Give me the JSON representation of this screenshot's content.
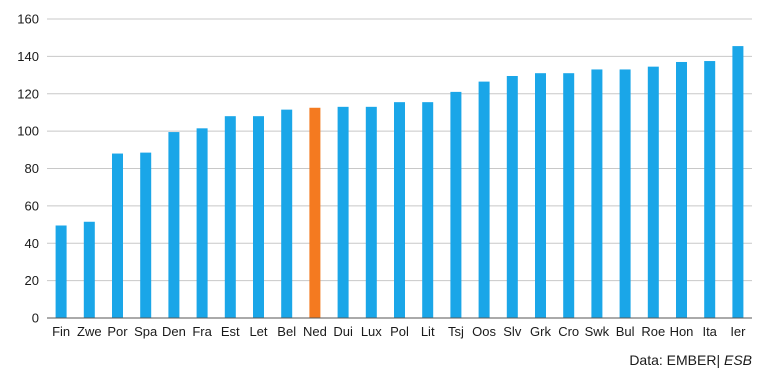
{
  "chart_data": {
    "type": "bar",
    "categories": [
      "Fin",
      "Zwe",
      "Por",
      "Spa",
      "Den",
      "Fra",
      "Est",
      "Let",
      "Bel",
      "Ned",
      "Dui",
      "Lux",
      "Pol",
      "Lit",
      "Tsj",
      "Oos",
      "Slv",
      "Grk",
      "Cro",
      "Swk",
      "Bul",
      "Roe",
      "Hon",
      "Ita",
      "Ier"
    ],
    "values": [
      49.5,
      51.5,
      88,
      88.5,
      99.5,
      101.5,
      108,
      108,
      111.5,
      112.5,
      113,
      113,
      115.5,
      115.5,
      121,
      126.5,
      129.5,
      131,
      131,
      133,
      133,
      134.5,
      137,
      137.5,
      145.5
    ],
    "highlight_category": "Ned",
    "ylim": [
      0,
      160
    ],
    "yticks": [
      0,
      20,
      40,
      60,
      80,
      100,
      120,
      140,
      160
    ],
    "ytick_labels": [
      "0",
      "20",
      "40",
      "60",
      "80",
      "100",
      "120",
      "140",
      "160"
    ],
    "grid": "horizontal",
    "title": "",
    "xlabel": "",
    "ylabel": "",
    "colors": {
      "bar": "#1aa6e8",
      "highlight": "#f47a20",
      "grid": "#c8c8c8",
      "axis": "#555555"
    }
  },
  "source": {
    "prefix": "Data: EMBER|",
    "italic": " ESB"
  }
}
